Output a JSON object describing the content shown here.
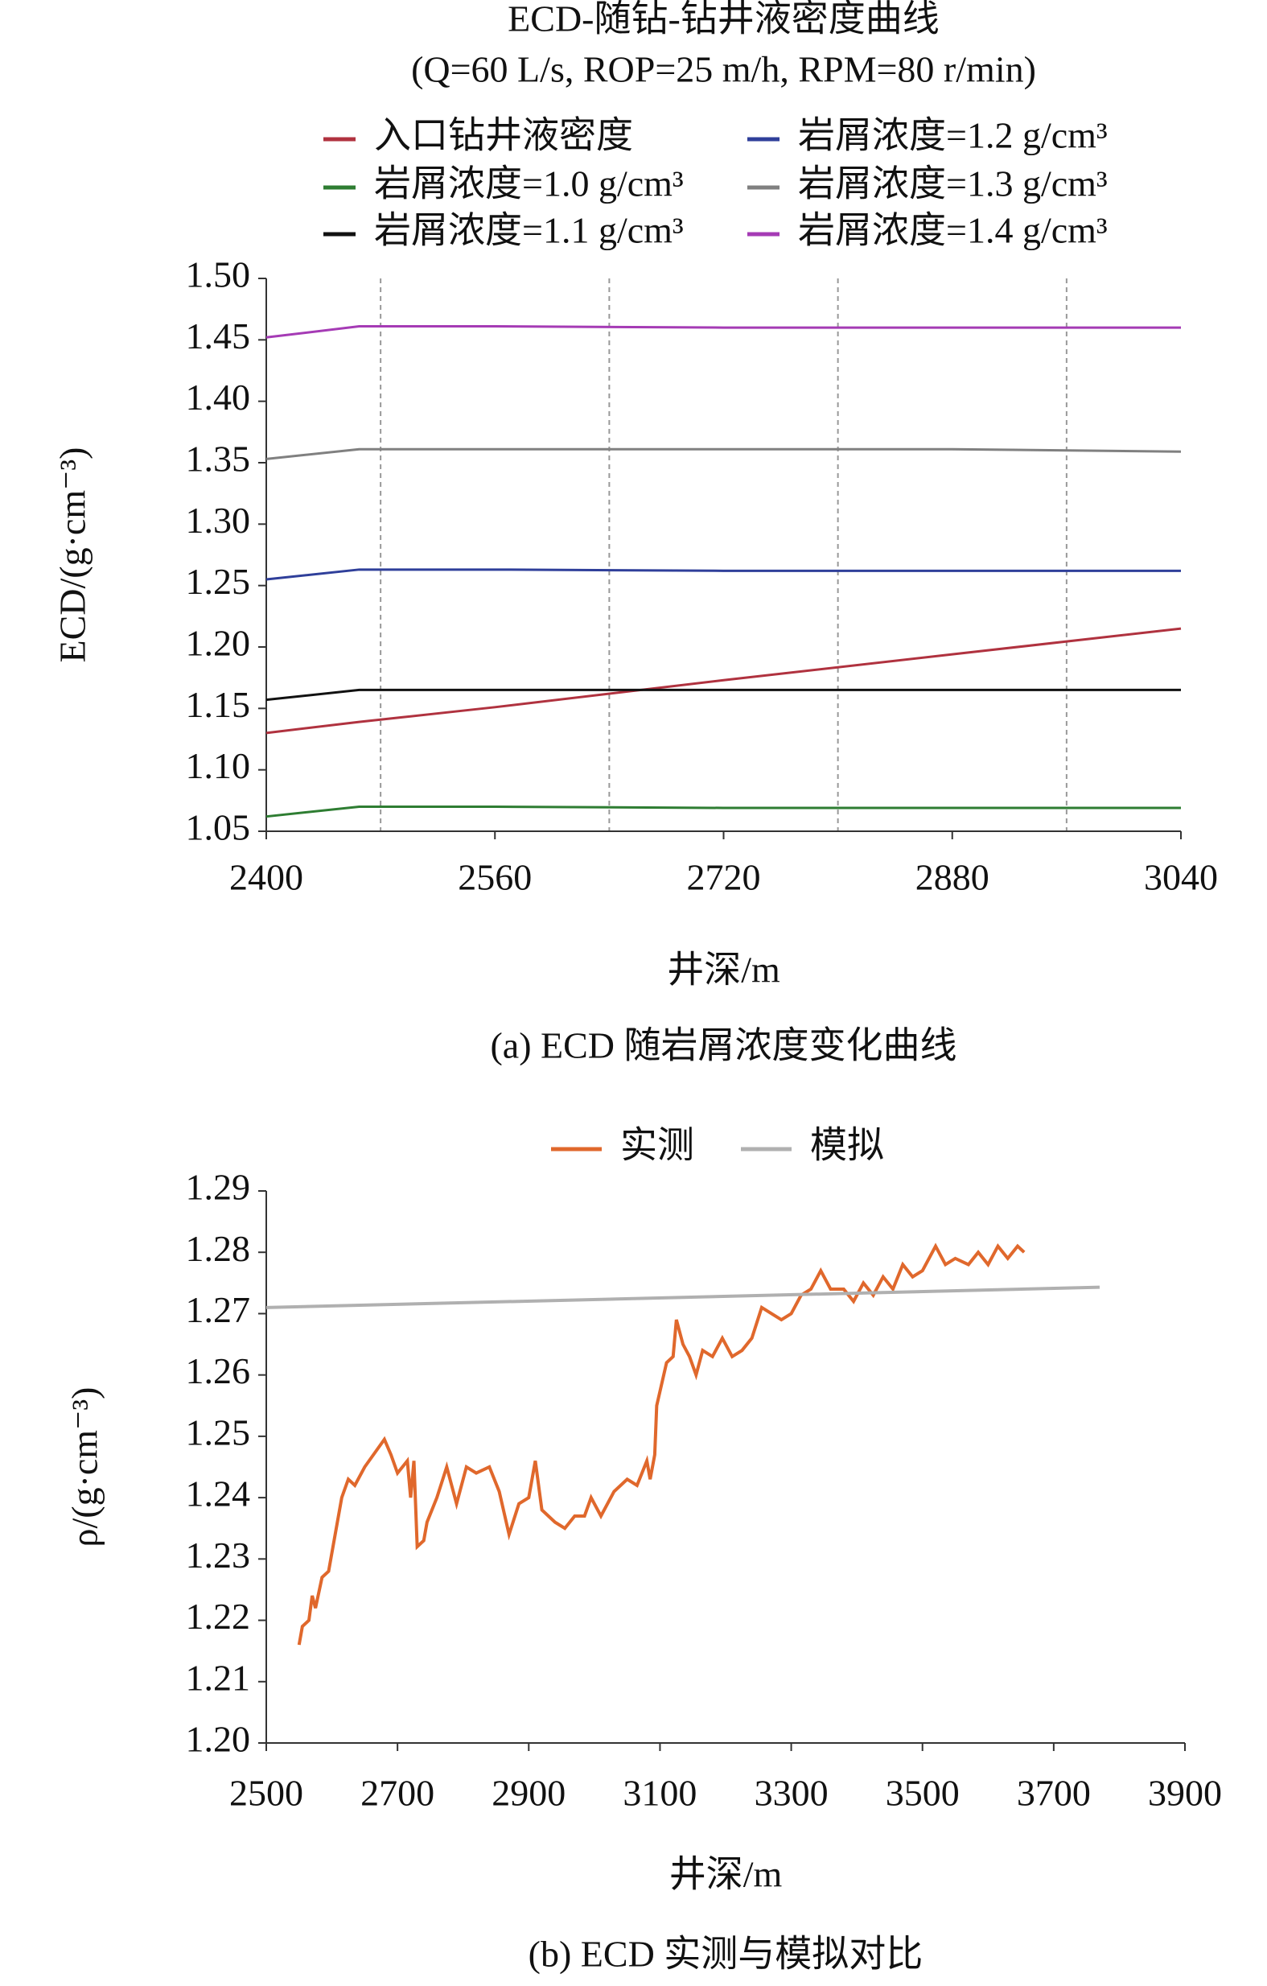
{
  "chart_data": [
    {
      "type": "line",
      "title": "ECD-随钻-钻井液密度曲线",
      "subtitle": "(Q=60 L/s, ROP=25 m/h, RPM=80 r/min)",
      "x_label": "井深/m",
      "y_label": "ECD/(g·cm⁻³)",
      "caption": "(a) ECD 随岩屑浓度变化曲线",
      "x": [
        2400,
        2465,
        2560,
        2720,
        2880,
        3040
      ],
      "series": [
        {
          "name": "入口钻井液密度",
          "color": "#b0323f",
          "values": [
            1.13,
            1.139,
            1.151,
            1.173,
            1.194,
            1.215
          ]
        },
        {
          "name": "岩屑浓度=1.0 g/cm³",
          "color": "#2e7d32",
          "values": [
            1.062,
            1.07,
            1.07,
            1.069,
            1.069,
            1.069
          ]
        },
        {
          "name": "岩屑浓度=1.1 g/cm³",
          "color": "#111111",
          "values": [
            1.157,
            1.165,
            1.165,
            1.165,
            1.165,
            1.165
          ]
        },
        {
          "name": "岩屑浓度=1.2 g/cm³",
          "color": "#2f3f9a",
          "values": [
            1.255,
            1.263,
            1.263,
            1.262,
            1.262,
            1.262
          ]
        },
        {
          "name": "岩屑浓度=1.3 g/cm³",
          "color": "#808080",
          "values": [
            1.353,
            1.361,
            1.361,
            1.361,
            1.361,
            1.359
          ]
        },
        {
          "name": "岩屑浓度=1.4 g/cm³",
          "color": "#a53bb5",
          "values": [
            1.452,
            1.461,
            1.461,
            1.46,
            1.46,
            1.46
          ]
        }
      ],
      "xlim": [
        2400,
        3040
      ],
      "xticks": [
        2400,
        2560,
        2720,
        2880,
        3040
      ],
      "ylim": [
        1.05,
        1.5
      ],
      "yticks": [
        1.05,
        {
          "value": 1.1,
          "label": "1.10"
        },
        1.15,
        {
          "value": 1.2,
          "label": "1.20"
        },
        1.25,
        {
          "value": 1.3,
          "label": "1.30"
        },
        1.35,
        {
          "value": 1.4,
          "label": "1.40"
        },
        1.45,
        {
          "value": 1.5,
          "label": "1.50"
        }
      ],
      "xgrid": [
        2480,
        2640,
        2800,
        2960
      ]
    },
    {
      "type": "line",
      "x_label": "井深/m",
      "y_label": "ρ/(g·cm⁻³)",
      "caption": "(b) ECD 实测与模拟对比",
      "series": [
        {
          "name": "实测",
          "color": "#e0682c",
          "x": [
            2550,
            2555,
            2565,
            2570,
            2575,
            2585,
            2595,
            2605,
            2615,
            2625,
            2635,
            2650,
            2670,
            2680,
            2690,
            2700,
            2715,
            2720,
            2725,
            2730,
            2740,
            2745,
            2760,
            2775,
            2790,
            2805,
            2820,
            2840,
            2855,
            2870,
            2885,
            2900,
            2910,
            2920,
            2940,
            2955,
            2970,
            2985,
            2995,
            3010,
            3030,
            3050,
            3065,
            3080,
            3085,
            3092,
            3095,
            3110,
            3120,
            3125,
            3135,
            3145,
            3155,
            3165,
            3180,
            3195,
            3210,
            3225,
            3240,
            3255,
            3270,
            3285,
            3300,
            3315,
            3330,
            3345,
            3360,
            3380,
            3395,
            3410,
            3425,
            3440,
            3455,
            3470,
            3485,
            3500,
            3520,
            3535,
            3550,
            3570,
            3585,
            3600,
            3615,
            3630,
            3645,
            3655
          ],
          "values": [
            1.216,
            1.219,
            1.22,
            1.224,
            1.222,
            1.227,
            1.228,
            1.234,
            1.24,
            1.243,
            1.242,
            1.245,
            1.248,
            1.2495,
            1.247,
            1.244,
            1.246,
            1.24,
            1.246,
            1.232,
            1.233,
            1.236,
            1.24,
            1.245,
            1.239,
            1.245,
            1.244,
            1.245,
            1.241,
            1.234,
            1.239,
            1.24,
            1.246,
            1.238,
            1.236,
            1.235,
            1.237,
            1.237,
            1.24,
            1.237,
            1.241,
            1.243,
            1.242,
            1.246,
            1.243,
            1.247,
            1.255,
            1.262,
            1.263,
            1.269,
            1.265,
            1.263,
            1.26,
            1.264,
            1.263,
            1.266,
            1.263,
            1.264,
            1.266,
            1.271,
            1.27,
            1.269,
            1.27,
            1.273,
            1.274,
            1.277,
            1.274,
            1.274,
            1.272,
            1.275,
            1.273,
            1.276,
            1.274,
            1.278,
            1.276,
            1.277,
            1.281,
            1.278,
            1.279,
            1.278,
            1.28,
            1.278,
            1.281,
            1.279,
            1.281,
            1.28
          ]
        },
        {
          "name": "模拟",
          "color": "#b0b0b0",
          "x": [
            2500,
            3770
          ],
          "values": [
            1.271,
            1.2743
          ]
        }
      ],
      "xlim": [
        2500,
        3900
      ],
      "xticks": [
        2500,
        2700,
        2900,
        3100,
        3300,
        3500,
        3700,
        3900
      ],
      "ylim": [
        1.2,
        1.29
      ],
      "yticks": [
        {
          "value": 1.2,
          "label": "1.20"
        },
        1.21,
        1.22,
        1.23,
        1.24,
        1.25,
        1.26,
        1.27,
        1.28,
        1.29
      ]
    }
  ]
}
